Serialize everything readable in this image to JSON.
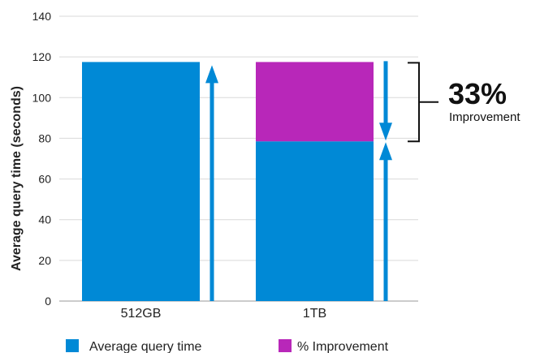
{
  "chart_data": {
    "type": "bar",
    "stacked": true,
    "ylabel": "Average query time (seconds)",
    "xlabel": "",
    "ylim": [
      0,
      140
    ],
    "yticks": [
      0,
      20,
      40,
      60,
      80,
      100,
      120,
      140
    ],
    "grid": true,
    "categories": [
      "512GB",
      "1TB"
    ],
    "series": [
      {
        "name": "Average query time",
        "values": [
          117.5,
          78.5
        ],
        "color": "#0089d6"
      },
      {
        "name": "% Improvement",
        "values": [
          0,
          39
        ],
        "color": "#b827b9"
      }
    ],
    "annotation": {
      "value": "33%",
      "label": "Improvement"
    },
    "legend_position": "bottom",
    "colors": {
      "arrow": "#0089d6",
      "grid": "#d9d9d9",
      "bracket": "#111111"
    }
  }
}
